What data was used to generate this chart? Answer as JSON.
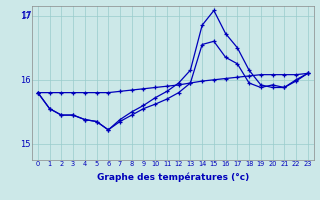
{
  "xlabel": "Graphe des températures (°c)",
  "x_ticks": [
    0,
    1,
    2,
    3,
    4,
    5,
    6,
    7,
    8,
    9,
    10,
    11,
    12,
    13,
    14,
    15,
    16,
    17,
    18,
    19,
    20,
    21,
    22,
    23
  ],
  "xlim": [
    -0.5,
    23.5
  ],
  "ylim": [
    14.75,
    17.15
  ],
  "yticks": [
    15,
    16,
    17
  ],
  "bg_color": "#cce8e8",
  "line_color": "#0000bb",
  "grid_color": "#99cccc",
  "line1": {
    "x": [
      0,
      1,
      2,
      3,
      4,
      5,
      6,
      7,
      8,
      9,
      10,
      11,
      12,
      13,
      14,
      15,
      16,
      17,
      18,
      19,
      20,
      21,
      22,
      23
    ],
    "y": [
      15.8,
      15.8,
      15.8,
      15.8,
      15.8,
      15.8,
      15.8,
      15.82,
      15.84,
      15.86,
      15.88,
      15.9,
      15.92,
      15.95,
      15.98,
      16.0,
      16.02,
      16.04,
      16.06,
      16.08,
      16.08,
      16.08,
      16.08,
      16.1
    ]
  },
  "line2": {
    "x": [
      0,
      1,
      2,
      3,
      4,
      5,
      6,
      7,
      8,
      9,
      10,
      11,
      12,
      13,
      14,
      15,
      16,
      17,
      18,
      19,
      20,
      21,
      22,
      23
    ],
    "y": [
      15.8,
      15.55,
      15.45,
      15.45,
      15.38,
      15.35,
      15.22,
      15.35,
      15.45,
      15.55,
      15.62,
      15.7,
      15.8,
      15.95,
      16.55,
      16.6,
      16.35,
      16.25,
      15.95,
      15.88,
      15.92,
      15.88,
      16.0,
      16.1
    ]
  },
  "line3": {
    "x": [
      0,
      1,
      2,
      3,
      4,
      5,
      6,
      7,
      8,
      9,
      10,
      11,
      12,
      13,
      14,
      15,
      16,
      17,
      18,
      19,
      20,
      21,
      22,
      23
    ],
    "y": [
      15.8,
      15.55,
      15.45,
      15.45,
      15.38,
      15.35,
      15.22,
      15.38,
      15.5,
      15.6,
      15.72,
      15.82,
      15.95,
      16.15,
      16.85,
      17.08,
      16.72,
      16.5,
      16.15,
      15.92,
      15.88,
      15.88,
      15.98,
      16.1
    ]
  }
}
